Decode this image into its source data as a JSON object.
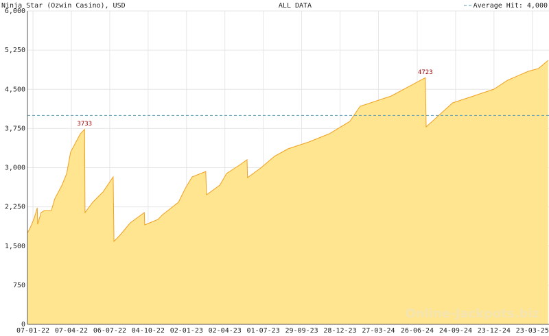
{
  "chart_data": {
    "type": "area",
    "title": "Ninja Star (Ozwin Casino), USD",
    "subtitle": "ALL DATA",
    "watermark": "Online-Jackpots.biz",
    "average": {
      "label": "Average Hit: 4,000",
      "value": 4000,
      "color": "#5a9ab4"
    },
    "x": [
      "25-12-21",
      "02-01-22",
      "10-01-22",
      "17-01-22",
      "18-01-22",
      "26-01-22",
      "03-02-22",
      "19-02-22",
      "27-02-22",
      "16-03-22",
      "27-03-22",
      "05-04-22",
      "17-04-22",
      "28-04-22",
      "08-05-22",
      "09-05-22",
      "27-05-22",
      "20-06-22",
      "14-07-22",
      "16-07-22",
      "30-07-22",
      "23-08-22",
      "25-09-22",
      "26-09-22",
      "27-10-22",
      "07-11-22",
      "14-12-22",
      "30-12-22",
      "15-01-23",
      "16-02-23",
      "18-02-23",
      "21-03-23",
      "06-04-23",
      "08-05-23",
      "24-05-23",
      "25-05-23",
      "25-06-23",
      "27-07-23",
      "28-08-23",
      "16-10-23",
      "03-12-23",
      "20-01-24",
      "13-02-24",
      "26-04-24",
      "15-07-24",
      "17-07-24",
      "16-08-24",
      "17-09-24",
      "05-11-24",
      "23-12-24",
      "24-01-25",
      "13-03-25",
      "06-04-25",
      "29-04-25"
    ],
    "series": [
      {
        "color": "#f0a020",
        "fill": "#ffe58f",
        "values": [
          1746,
          1877,
          2035,
          2232,
          1917,
          2140,
          2180,
          2180,
          2403,
          2665,
          2888,
          3295,
          3479,
          3650,
          3733,
          2140,
          2337,
          2534,
          2823,
          1589,
          1707,
          1943,
          2140,
          1904,
          2009,
          2101,
          2337,
          2600,
          2823,
          2927,
          2481,
          2665,
          2888,
          3059,
          3151,
          2810,
          2993,
          3216,
          3361,
          3492,
          3650,
          3886,
          4175,
          4372,
          4723,
          3781,
          4004,
          4241,
          4372,
          4503,
          4674,
          4845,
          4897,
          5055
        ]
      }
    ],
    "annotations": [
      {
        "x": "08-05-22",
        "value": 3733
      },
      {
        "x": "15-07-24",
        "value": 4723
      }
    ],
    "xlim": [
      "25-12-21",
      "01-05-25"
    ],
    "xticks": [
      "07-01-22",
      "07-04-22",
      "06-07-22",
      "04-10-22",
      "02-01-23",
      "02-04-23",
      "01-07-23",
      "29-09-23",
      "28-12-23",
      "27-03-24",
      "26-06-24",
      "24-09-24",
      "23-12-24",
      "23-03-25"
    ],
    "ylim": [
      0,
      6000
    ],
    "yticks": [
      0,
      750,
      {
        "value": 1500,
        "label": "1,500"
      },
      {
        "value": 2250,
        "label": "2,250"
      },
      {
        "value": 3000,
        "label": "3,000"
      },
      {
        "value": 3750,
        "label": "3,750"
      },
      {
        "value": 4500,
        "label": "4,500"
      },
      {
        "value": 5250,
        "label": "5,250"
      },
      {
        "value": 6000,
        "label": "6,000"
      }
    ],
    "grid": true
  }
}
